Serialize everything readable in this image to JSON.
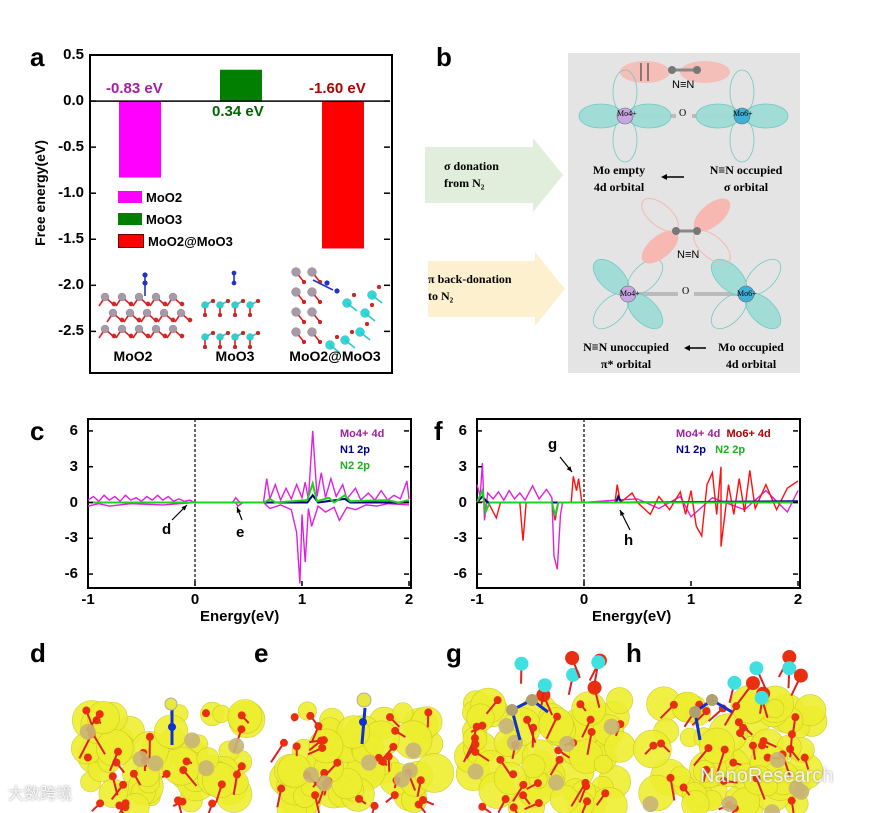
{
  "panel_labels": {
    "a": "a",
    "b": "b",
    "c": "c",
    "f": "f",
    "d": "d",
    "e": "e",
    "g": "g",
    "h": "h"
  },
  "colors": {
    "moo2": "#ff00ff",
    "moo3": "#007f00",
    "hetero": "#ff0000",
    "mo4": "#e020e0",
    "mo6": "#ff1010",
    "n1": "#000080",
    "n2": "#20d020"
  },
  "chart_data": [
    {
      "id": "a",
      "type": "bar",
      "title": "",
      "xlabel": "",
      "ylabel": "Free energy(eV)",
      "ylim": [
        -2.93,
        0.5
      ],
      "yticks": [
        "0.5",
        "0.0",
        "-0.5",
        "-1.0",
        "-1.5",
        "-2.0",
        "-2.5"
      ],
      "categories": [
        "MoO2",
        "MoO3",
        "MoO2@MoO3"
      ],
      "values": [
        -0.83,
        0.34,
        -1.6
      ],
      "value_labels": [
        "-0.83 eV",
        "0.34 eV",
        "-1.60 eV"
      ],
      "legend": [
        "MoO2",
        "MoO3",
        "MoO2@MoO3"
      ],
      "legend_placement": "center-left",
      "structure_labels": [
        "MoO2",
        "MoO3",
        "MoO2@MoO3"
      ]
    },
    {
      "id": "c",
      "type": "line",
      "xlabel": "Energy(eV)",
      "ylabel": "",
      "xlim": [
        -1,
        2
      ],
      "ylim": [
        -7,
        7
      ],
      "xticks": [
        "-1",
        "0",
        "1",
        "2"
      ],
      "yticks": [
        "6",
        "3",
        "0",
        "-3",
        "-6"
      ],
      "legend": [
        "Mo4+ 4d",
        "N1 2p",
        "N2 2p"
      ],
      "legend_placement": "top-right",
      "annotations": [
        "d",
        "e"
      ],
      "series": [
        {
          "name": "Mo4+ 4d up",
          "points": [
            [
              -1,
              0.2
            ],
            [
              -0.95,
              0.5
            ],
            [
              -0.9,
              0.1
            ],
            [
              -0.85,
              0.6
            ],
            [
              -0.8,
              0.2
            ],
            [
              -0.75,
              0.5
            ],
            [
              -0.7,
              0.1
            ],
            [
              -0.65,
              0.6
            ],
            [
              -0.6,
              0.2
            ],
            [
              -0.55,
              0.4
            ],
            [
              -0.5,
              0.1
            ],
            [
              -0.45,
              0.5
            ],
            [
              -0.4,
              0.2
            ],
            [
              -0.35,
              0.6
            ],
            [
              -0.3,
              0.2
            ],
            [
              -0.25,
              0.5
            ],
            [
              -0.2,
              0.1
            ],
            [
              -0.15,
              0.3
            ],
            [
              -0.1,
              0.1
            ],
            [
              -0.05,
              0.2
            ],
            [
              0,
              0
            ],
            [
              0.35,
              0
            ],
            [
              0.38,
              0.4
            ],
            [
              0.42,
              0
            ],
            [
              0.64,
              0
            ],
            [
              0.67,
              2.0
            ],
            [
              0.7,
              0.3
            ],
            [
              0.75,
              1.5
            ],
            [
              0.8,
              0.2
            ],
            [
              0.85,
              1.2
            ],
            [
              0.9,
              0.3
            ],
            [
              0.95,
              1.5
            ],
            [
              1.0,
              0.4
            ],
            [
              1.03,
              1.7
            ],
            [
              1.06,
              0.3
            ],
            [
              1.1,
              6.0
            ],
            [
              1.14,
              0.5
            ],
            [
              1.18,
              2.5
            ],
            [
              1.22,
              0.4
            ],
            [
              1.27,
              2.0
            ],
            [
              1.32,
              0.5
            ],
            [
              1.38,
              1.5
            ],
            [
              1.42,
              0.3
            ],
            [
              1.5,
              1.2
            ],
            [
              1.55,
              0.2
            ],
            [
              1.62,
              0.8
            ],
            [
              1.68,
              0.2
            ],
            [
              1.74,
              1.0
            ],
            [
              1.8,
              0.2
            ],
            [
              1.86,
              0.6
            ],
            [
              1.92,
              0.3
            ],
            [
              1.98,
              1.8
            ],
            [
              2,
              0.3
            ]
          ]
        },
        {
          "name": "Mo4+ 4d down",
          "points": [
            [
              -1,
              -0.3
            ],
            [
              -0.9,
              -0.1
            ],
            [
              -0.8,
              -0.3
            ],
            [
              -0.6,
              -0.1
            ],
            [
              -0.3,
              -0.2
            ],
            [
              0,
              0
            ],
            [
              0.38,
              0
            ],
            [
              0.4,
              -0.3
            ],
            [
              0.45,
              0
            ],
            [
              0.64,
              0
            ],
            [
              0.7,
              -0.5
            ],
            [
              0.8,
              -0.2
            ],
            [
              0.9,
              -0.6
            ],
            [
              0.95,
              -2.5
            ],
            [
              0.98,
              -6.8
            ],
            [
              1.0,
              -1.0
            ],
            [
              1.03,
              -5.0
            ],
            [
              1.06,
              -0.5
            ],
            [
              1.09,
              -2.0
            ],
            [
              1.15,
              -0.3
            ],
            [
              1.22,
              -0.8
            ],
            [
              1.3,
              -0.4
            ],
            [
              1.35,
              -1.5
            ],
            [
              1.42,
              -0.4
            ],
            [
              1.5,
              -0.6
            ],
            [
              1.6,
              -0.2
            ],
            [
              1.7,
              -0.3
            ],
            [
              1.8,
              -0.1
            ],
            [
              2,
              -0.2
            ]
          ]
        },
        {
          "name": "N1 2p",
          "points": [
            [
              -1,
              0
            ],
            [
              1.05,
              0
            ],
            [
              1.1,
              0.6
            ],
            [
              1.15,
              0
            ],
            [
              1.4,
              0.3
            ],
            [
              1.45,
              0
            ],
            [
              2,
              0
            ]
          ]
        },
        {
          "name": "N2 2p",
          "points": [
            [
              -1,
              0
            ],
            [
              0.65,
              0
            ],
            [
              0.7,
              0.3
            ],
            [
              0.75,
              0
            ],
            [
              1.05,
              0.2
            ],
            [
              1.1,
              1.6
            ],
            [
              1.14,
              0.1
            ],
            [
              1.25,
              0.4
            ],
            [
              1.3,
              0
            ],
            [
              1.4,
              0.6
            ],
            [
              1.45,
              0.1
            ],
            [
              1.8,
              0.2
            ],
            [
              1.9,
              0
            ],
            [
              2,
              0.2
            ]
          ]
        }
      ]
    },
    {
      "id": "f",
      "type": "line",
      "xlabel": "Energy(eV)",
      "ylabel": "",
      "xlim": [
        -1,
        2
      ],
      "ylim": [
        -7,
        7
      ],
      "xticks": [
        "-1",
        "0",
        "1",
        "2"
      ],
      "yticks": [
        "6",
        "3",
        "0",
        "-3",
        "-6"
      ],
      "legend": [
        "Mo4+ 4d",
        "Mo6+ 4d",
        "N1 2p",
        "N2 2p"
      ],
      "legend_placement": "top-right",
      "annotations": [
        "g",
        "h"
      ],
      "series": [
        {
          "name": "Mo4+ 4d",
          "points": [
            [
              -1,
              1.5
            ],
            [
              -0.97,
              0.5
            ],
            [
              -0.95,
              3.3
            ],
            [
              -0.93,
              -1.5
            ],
            [
              -0.9,
              0.8
            ],
            [
              -0.85,
              0.3
            ],
            [
              -0.8,
              0.9
            ],
            [
              -0.75,
              0.2
            ],
            [
              -0.7,
              1.0
            ],
            [
              -0.65,
              0.3
            ],
            [
              -0.6,
              0.8
            ],
            [
              -0.55,
              0.2
            ],
            [
              -0.48,
              1.4
            ],
            [
              -0.42,
              0.3
            ],
            [
              -0.35,
              1.1
            ],
            [
              -0.3,
              0.4
            ],
            [
              -0.28,
              -4.5
            ],
            [
              -0.25,
              -5.6
            ],
            [
              -0.22,
              -1.0
            ],
            [
              -0.2,
              0
            ],
            [
              0,
              0
            ],
            [
              0.3,
              0.2
            ],
            [
              0.5,
              0.3
            ],
            [
              0.7,
              -0.5
            ],
            [
              0.9,
              0.5
            ],
            [
              1.0,
              -1.2
            ],
            [
              1.2,
              0.4
            ],
            [
              1.5,
              -0.6
            ],
            [
              1.7,
              1.0
            ],
            [
              1.9,
              -0.8
            ],
            [
              2,
              1.0
            ]
          ]
        },
        {
          "name": "Mo6+ 4d",
          "points": [
            [
              -1,
              0
            ],
            [
              -0.9,
              0.1
            ],
            [
              -0.82,
              -1.3
            ],
            [
              -0.78,
              0
            ],
            [
              -0.6,
              0
            ],
            [
              -0.57,
              -3.2
            ],
            [
              -0.54,
              0
            ],
            [
              -0.3,
              0
            ],
            [
              -0.27,
              -1.5
            ],
            [
              -0.24,
              0
            ],
            [
              -0.12,
              0
            ],
            [
              -0.1,
              2.2
            ],
            [
              -0.07,
              1.0
            ],
            [
              -0.05,
              2.0
            ],
            [
              -0.02,
              0
            ],
            [
              0.29,
              0
            ],
            [
              0.31,
              1.5
            ],
            [
              0.34,
              0
            ],
            [
              0.45,
              0.8
            ],
            [
              0.5,
              0
            ],
            [
              0.62,
              -1.0
            ],
            [
              0.7,
              0.5
            ],
            [
              0.8,
              -0.6
            ],
            [
              0.9,
              0.9
            ],
            [
              0.95,
              -1.0
            ],
            [
              1.0,
              1.0
            ],
            [
              1.05,
              -2.0
            ],
            [
              1.1,
              -2.8
            ],
            [
              1.15,
              1.5
            ],
            [
              1.2,
              2.5
            ],
            [
              1.24,
              -1.0
            ],
            [
              1.28,
              3.0
            ],
            [
              1.28,
              -3.7
            ],
            [
              1.35,
              1.5
            ],
            [
              1.4,
              -1.0
            ],
            [
              1.45,
              2.0
            ],
            [
              1.5,
              -0.8
            ],
            [
              1.55,
              2.7
            ],
            [
              1.6,
              -0.5
            ],
            [
              1.7,
              1.5
            ],
            [
              1.8,
              -0.6
            ],
            [
              1.9,
              1.2
            ],
            [
              2,
              1.8
            ]
          ]
        },
        {
          "name": "N1 2p",
          "points": [
            [
              -1,
              0
            ],
            [
              -0.95,
              0.5
            ],
            [
              -0.9,
              0
            ],
            [
              0.3,
              0
            ],
            [
              0.32,
              0.5
            ],
            [
              0.35,
              0
            ],
            [
              2,
              0.1
            ]
          ]
        },
        {
          "name": "N2 2p",
          "points": [
            [
              -1,
              0
            ],
            [
              -0.95,
              1.0
            ],
            [
              -0.92,
              -0.8
            ],
            [
              -0.88,
              0
            ],
            [
              -0.3,
              0
            ],
            [
              -0.27,
              -1.1
            ],
            [
              -0.24,
              0
            ],
            [
              2,
              0
            ]
          ]
        }
      ]
    }
  ],
  "panel_b": {
    "n2_label": "N≡N",
    "o_label": "O",
    "mo_left": "Mo4+",
    "mo_right": "Mo6+",
    "sigma_box": [
      "σ donation",
      "from N₂"
    ],
    "pi_box": [
      "π back-donation",
      "to N₂"
    ],
    "top_left_text": [
      "Mo empty",
      "4d orbital"
    ],
    "top_right_text": [
      "N≡N occupied",
      "σ orbital"
    ],
    "bottom_left_text": [
      "N≡N unoccupied",
      "π* orbital"
    ],
    "bottom_right_text": [
      "Mo occupied",
      "4d orbital"
    ]
  },
  "watermarks": {
    "left": "大数跨境",
    "right": "NanoResearch"
  }
}
